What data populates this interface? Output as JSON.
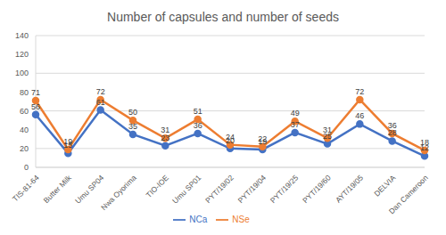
{
  "chart_data": {
    "type": "line",
    "title": "Number of capsules and number of seeds",
    "categories": [
      "TIS-81-64",
      "Butter Milk",
      "Umu SP04",
      "Nwa Oyorima",
      "TIO-IOE",
      "Umu SP01",
      "PYT/19/02",
      "PYT/19/04",
      "PYT/19/25",
      "PYT/19/60",
      "AYT/19/05",
      "DELVIA",
      "Dan Cameroon"
    ],
    "series": [
      {
        "name": "NCa",
        "color": "#4472c4",
        "values": [
          56,
          15,
          61,
          35,
          23,
          36,
          20,
          19,
          37,
          25,
          46,
          28,
          12
        ]
      },
      {
        "name": "NSe",
        "color": "#ed7d31",
        "values": [
          71,
          19,
          72,
          50,
          31,
          51,
          24,
          22,
          49,
          31,
          72,
          36,
          18
        ]
      }
    ],
    "stacked": true,
    "ylim": [
      0,
      140
    ],
    "yticks": [
      0,
      20,
      40,
      60,
      80,
      100,
      120,
      140
    ],
    "grid": true,
    "legend": "bottom",
    "data_labels": true,
    "marker": "circle"
  }
}
